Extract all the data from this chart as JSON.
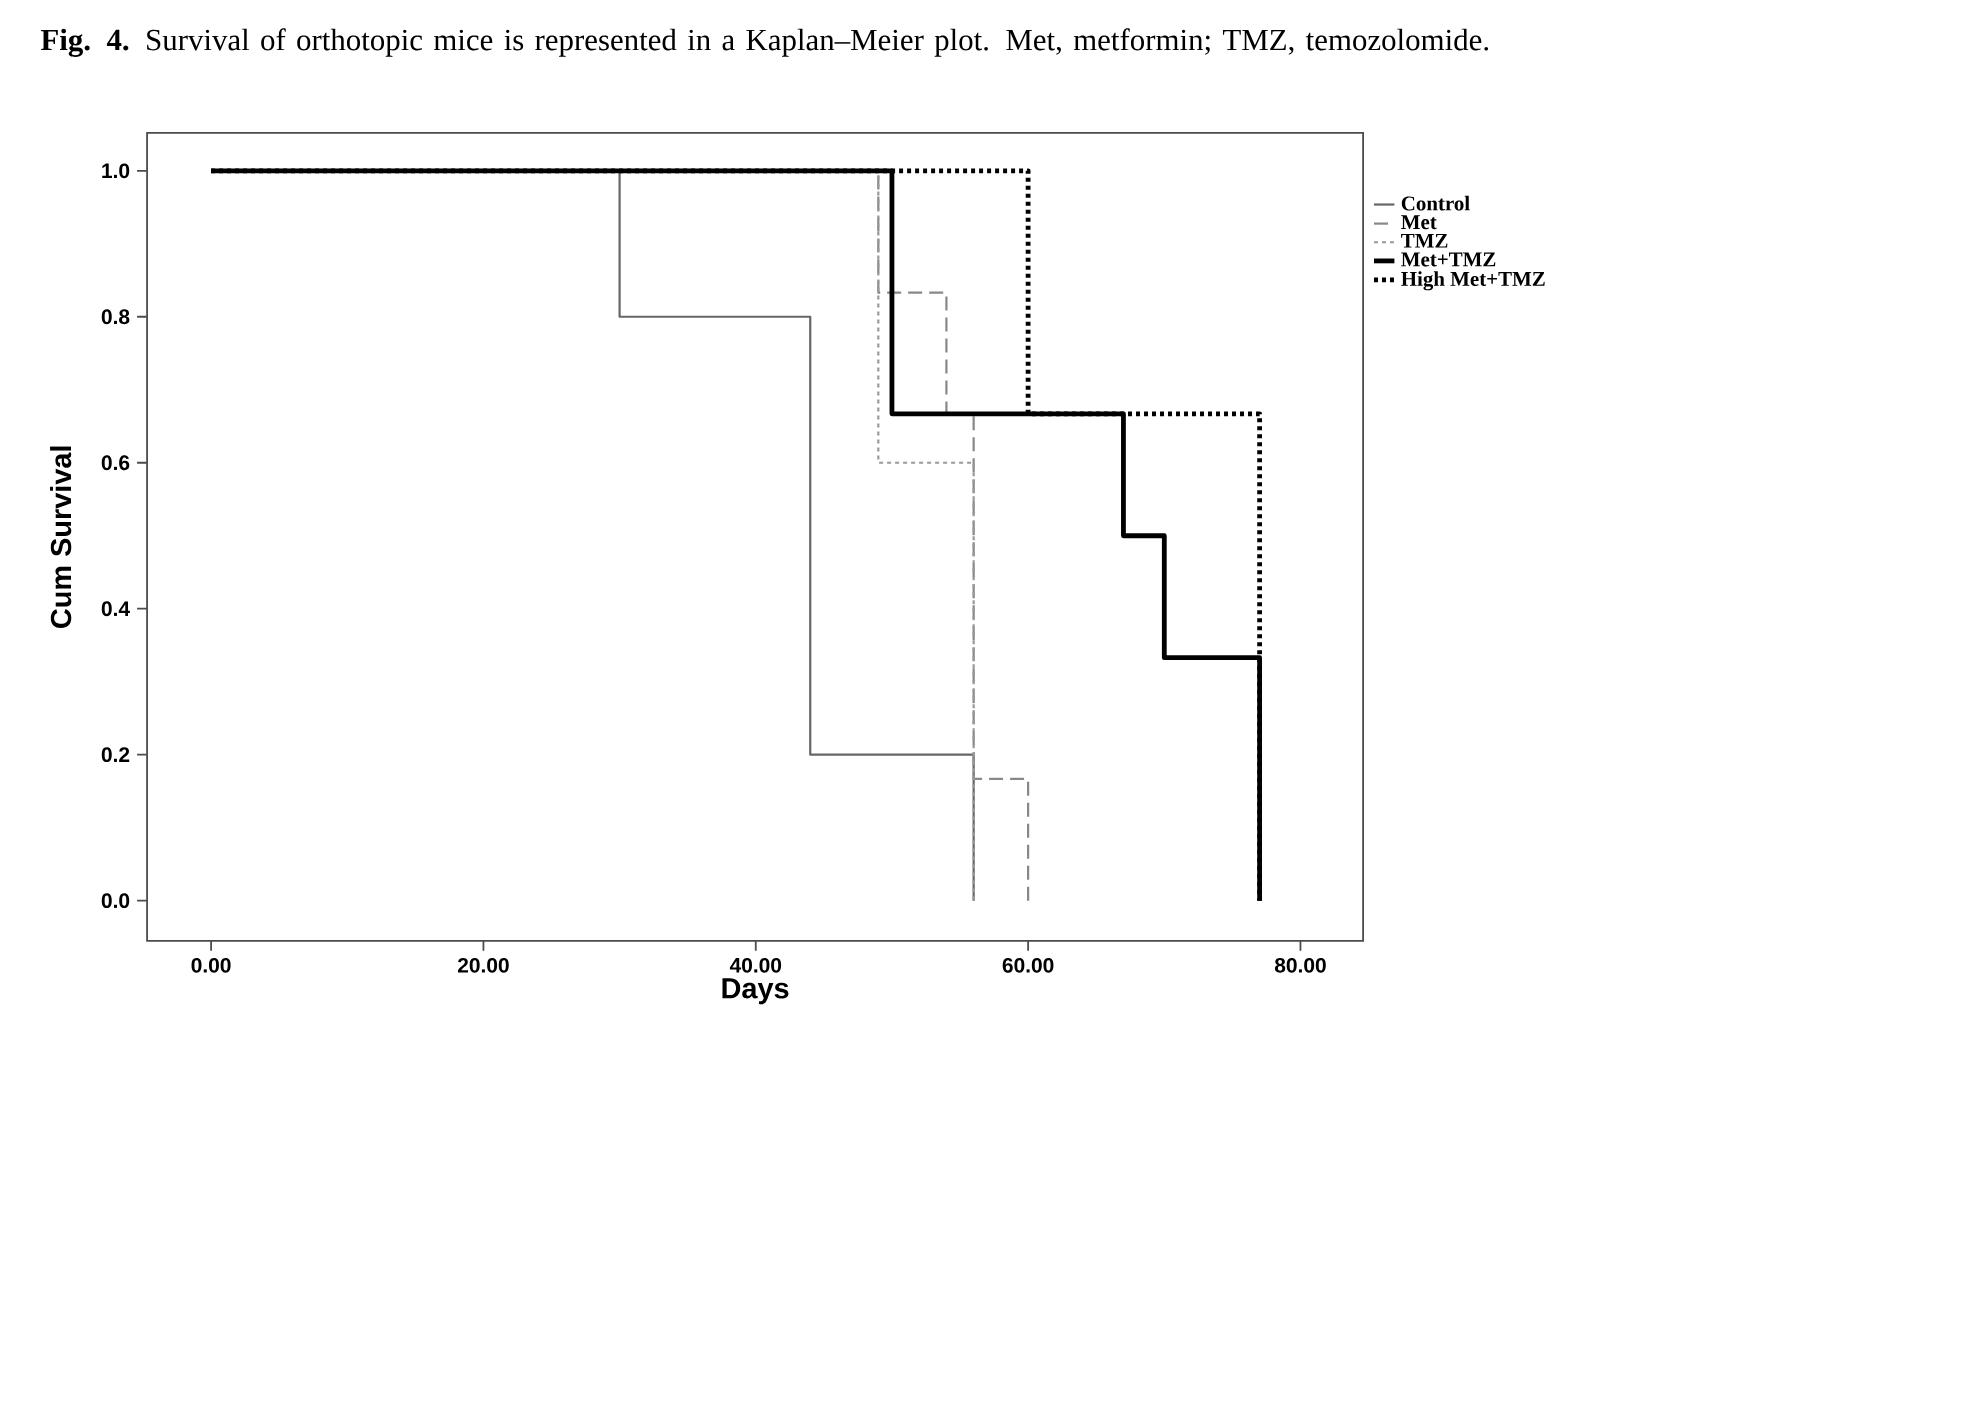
{
  "chart_data": {
    "type": "step",
    "title": "**Fig. 4.** Survival of orthotopic mice is represented in a Kaplan–Meier plot. Met, metformin; TMZ, temozolomide.",
    "xlabel": "Days",
    "ylabel": "Cum Survival",
    "xlim": [
      -4.7,
      84.6
    ],
    "ylim": [
      -0.055,
      1.052
    ],
    "xticks": [
      {
        "value": 0,
        "label": "0.00"
      },
      {
        "value": 20,
        "label": "20.00"
      },
      {
        "value": 40,
        "label": "40.00"
      },
      {
        "value": 60,
        "label": "60.00"
      },
      {
        "value": 80,
        "label": "80.00"
      }
    ],
    "yticks": [
      {
        "value": 0,
        "label": "0.0"
      },
      {
        "value": 0.2,
        "label": "0.2"
      },
      {
        "value": 0.4,
        "label": "0.4"
      },
      {
        "value": 0.6,
        "label": "0.6"
      },
      {
        "value": 0.8,
        "label": "0.8"
      },
      {
        "value": 1,
        "label": "1.0"
      }
    ],
    "legend": "right",
    "marker": "none",
    "series": [
      {
        "name": "Control",
        "color": "#666666",
        "line_style": "solid",
        "x": [
          0,
          30,
          44,
          56
        ],
        "values": [
          1,
          0.8,
          0.2,
          0
        ]
      },
      {
        "name": "Met",
        "color": "#888888",
        "line_style": "dashed",
        "x": [
          0,
          49,
          54,
          56,
          60
        ],
        "values": [
          1,
          0.833,
          0.667,
          0.167,
          0
        ]
      },
      {
        "name": "TMZ",
        "color": "#999999",
        "line_style": "dotted",
        "x": [
          0,
          49,
          56
        ],
        "values": [
          1,
          0.6,
          0
        ]
      },
      {
        "name": "Met+TMZ",
        "color": "#000000",
        "line_style": "solid",
        "x": [
          0,
          50,
          67,
          70,
          77
        ],
        "values": [
          1,
          0.667,
          0.5,
          0.333,
          0
        ]
      },
      {
        "name": "High Met+TMZ",
        "color": "#000000",
        "line_style": "dotted",
        "x": [
          0,
          60,
          77
        ],
        "values": [
          1,
          0.667,
          0
        ]
      }
    ]
  }
}
